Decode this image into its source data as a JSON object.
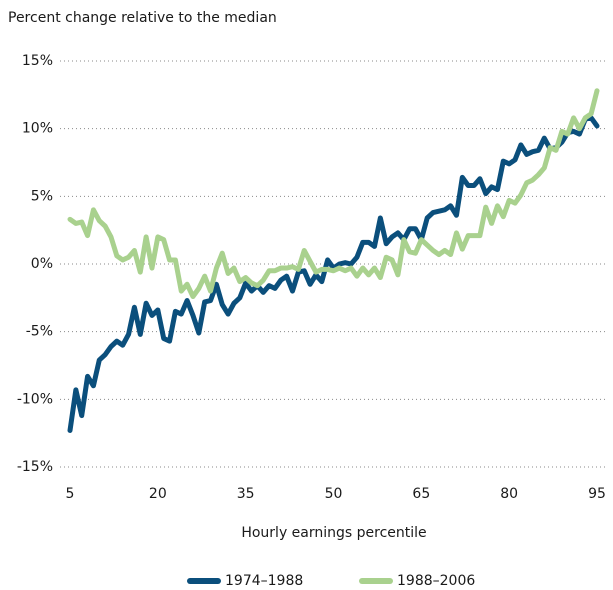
{
  "chart_data": {
    "type": "line",
    "title": "Percent change relative to the median",
    "x_label": "Hourly earnings percentile",
    "x": [
      5,
      6,
      7,
      8,
      9,
      10,
      11,
      12,
      13,
      14,
      15,
      16,
      17,
      18,
      19,
      20,
      21,
      22,
      23,
      24,
      25,
      26,
      27,
      28,
      29,
      30,
      31,
      32,
      33,
      34,
      35,
      36,
      37,
      38,
      39,
      40,
      41,
      42,
      43,
      44,
      45,
      46,
      47,
      48,
      49,
      50,
      51,
      52,
      53,
      54,
      55,
      56,
      57,
      58,
      59,
      60,
      61,
      62,
      63,
      64,
      65,
      66,
      67,
      68,
      69,
      70,
      71,
      72,
      73,
      74,
      75,
      76,
      77,
      78,
      79,
      80,
      81,
      82,
      83,
      84,
      85,
      86,
      87,
      88,
      89,
      90,
      91,
      92,
      93,
      94,
      95
    ],
    "series": [
      {
        "name": "1974–1988",
        "color": "#0b4f7c",
        "values": [
          -12.3,
          -9.3,
          -11.2,
          -8.3,
          -9,
          -7.1,
          -6.7,
          -6.1,
          -5.7,
          -6.0,
          -5.2,
          -3.2,
          -5.2,
          -2.9,
          -3.8,
          -3.4,
          -5.5,
          -5.7,
          -3.5,
          -3.7,
          -2.7,
          -3.8,
          -5.1,
          -2.8,
          -2.7,
          -1.5,
          -3.0,
          -3.7,
          -2.9,
          -2.5,
          -1.4,
          -2.0,
          -1.6,
          -2.1,
          -1.6,
          -1.8,
          -1.2,
          -0.9,
          -2.0,
          -0.6,
          -0.5,
          -1.5,
          -0.8,
          -1.3,
          0.3,
          -0.3,
          0,
          0.1,
          0,
          0.5,
          1.6,
          1.6,
          1.3,
          3.4,
          1.5,
          2.0,
          2.3,
          1.8,
          2.6,
          2.6,
          1.8,
          3.4,
          3.8,
          3.9,
          4.0,
          4.3,
          3.6,
          6.4,
          5.8,
          5.8,
          6.3,
          5.2,
          5.7,
          5.5,
          7.6,
          7.4,
          7.7,
          8.8,
          8.1,
          8.3,
          8.4,
          9.3,
          8.5,
          8.6,
          9.0,
          9.7,
          9.8,
          9.6,
          10.7,
          10.8,
          10.2
        ]
      },
      {
        "name": "1988–2006",
        "color": "#a9d18e",
        "values": [
          3.3,
          3.0,
          3.1,
          2.1,
          4.0,
          3.2,
          2.8,
          2.0,
          0.6,
          0.3,
          0.5,
          1.0,
          -0.6,
          2.0,
          -0.3,
          2.0,
          1.8,
          0.3,
          0.3,
          -2.0,
          -1.5,
          -2.4,
          -1.8,
          -0.9,
          -2.0,
          -0.3,
          0.8,
          -0.7,
          -0.3,
          -1.3,
          -1.0,
          -1.4,
          -1.6,
          -1.2,
          -0.5,
          -0.5,
          -0.3,
          -0.3,
          -0.2,
          -0.4,
          1.0,
          0.2,
          -0.6,
          -0.4,
          -0.4,
          -0.5,
          -0.3,
          -0.5,
          -0.3,
          -0.9,
          -0.3,
          -0.8,
          -0.3,
          -1.0,
          0.5,
          0.3,
          -0.8,
          1.8,
          0.9,
          0.8,
          1.8,
          1.4,
          1.0,
          0.7,
          1.0,
          0.7,
          2.3,
          1.1,
          2.1,
          2.1,
          2.1,
          4.2,
          3.0,
          4.3,
          3.5,
          4.7,
          4.5,
          5.1,
          6.0,
          6.2,
          6.6,
          7.1,
          8.6,
          8.4,
          9.8,
          9.6,
          10.8,
          10.0,
          10.8,
          11.1,
          12.8
        ]
      }
    ],
    "xlim": [
      5,
      95
    ],
    "xticks": [
      5,
      20,
      35,
      50,
      65,
      80,
      95
    ],
    "ylim": [
      -15,
      15
    ],
    "yticks": [
      {
        "value": -15,
        "label": "-15%"
      },
      {
        "value": -10,
        "label": "-10%"
      },
      {
        "value": -5,
        "label": "-5%"
      },
      {
        "value": 0,
        "label": "0%"
      },
      {
        "value": 5,
        "label": "5%"
      },
      {
        "value": 10,
        "label": "10%"
      },
      {
        "value": 15,
        "label": "15%"
      }
    ],
    "grid": true,
    "legend": "bottom"
  }
}
